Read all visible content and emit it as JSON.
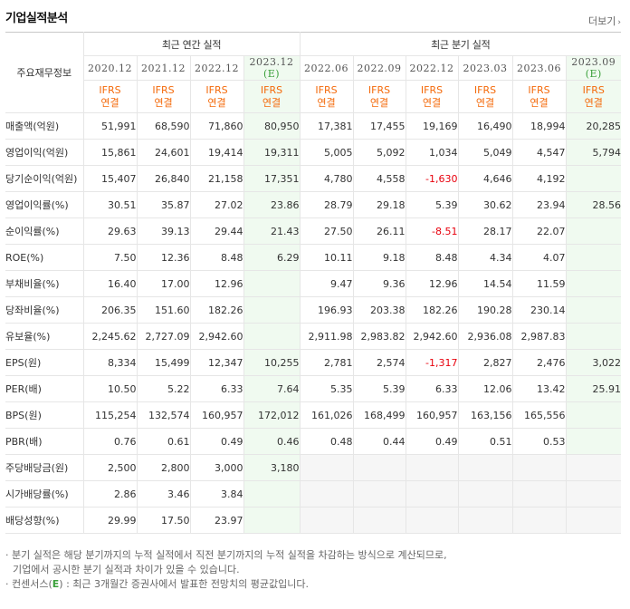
{
  "title": "기업실적분석",
  "more_label": "더보기",
  "more_arrow": "›",
  "table": {
    "item_header": "주요재무정보",
    "group_annual": "최근 연간 실적",
    "group_quarter": "최근 분기 실적",
    "periods": [
      {
        "label": "2020.12",
        "est": ""
      },
      {
        "label": "2021.12",
        "est": ""
      },
      {
        "label": "2022.12",
        "est": ""
      },
      {
        "label": "2023.12",
        "est": "(E)"
      },
      {
        "label": "2022.06",
        "est": ""
      },
      {
        "label": "2022.09",
        "est": ""
      },
      {
        "label": "2022.12",
        "est": ""
      },
      {
        "label": "2023.03",
        "est": ""
      },
      {
        "label": "2023.06",
        "est": ""
      },
      {
        "label": "2023.09",
        "est": "(E)"
      }
    ],
    "ifrs_line1": "IFRS",
    "ifrs_line2": "연결",
    "rows": [
      {
        "label": "매출액(억원)",
        "values": [
          "51,991",
          "68,590",
          "71,860",
          "80,950",
          "17,381",
          "17,455",
          "19,169",
          "16,490",
          "18,994",
          "20,285"
        ]
      },
      {
        "label": "영업이익(억원)",
        "values": [
          "15,861",
          "24,601",
          "19,414",
          "19,311",
          "5,005",
          "5,092",
          "1,034",
          "5,049",
          "4,547",
          "5,794"
        ]
      },
      {
        "label": "당기순이익(억원)",
        "values": [
          "15,407",
          "26,840",
          "21,158",
          "17,351",
          "4,780",
          "4,558",
          "-1,630",
          "4,646",
          "4,192",
          ""
        ]
      },
      {
        "label": "영업이익률(%)",
        "values": [
          "30.51",
          "35.87",
          "27.02",
          "23.86",
          "28.79",
          "29.18",
          "5.39",
          "30.62",
          "23.94",
          "28.56"
        ]
      },
      {
        "label": "순이익률(%)",
        "values": [
          "29.63",
          "39.13",
          "29.44",
          "21.43",
          "27.50",
          "26.11",
          "-8.51",
          "28.17",
          "22.07",
          ""
        ]
      },
      {
        "label": "ROE(%)",
        "values": [
          "7.50",
          "12.36",
          "8.48",
          "6.29",
          "10.11",
          "9.18",
          "8.48",
          "4.34",
          "4.07",
          ""
        ]
      },
      {
        "label": "부채비율(%)",
        "values": [
          "16.40",
          "17.00",
          "12.96",
          "",
          "9.47",
          "9.36",
          "12.96",
          "14.54",
          "11.59",
          ""
        ]
      },
      {
        "label": "당좌비율(%)",
        "values": [
          "206.35",
          "151.60",
          "182.26",
          "",
          "196.93",
          "203.38",
          "182.26",
          "190.28",
          "230.14",
          ""
        ]
      },
      {
        "label": "유보율(%)",
        "values": [
          "2,245.62",
          "2,727.09",
          "2,942.60",
          "",
          "2,911.98",
          "2,983.82",
          "2,942.60",
          "2,936.08",
          "2,987.83",
          ""
        ]
      },
      {
        "label": "EPS(원)",
        "values": [
          "8,334",
          "15,499",
          "12,347",
          "10,255",
          "2,781",
          "2,574",
          "-1,317",
          "2,827",
          "2,476",
          "3,022"
        ]
      },
      {
        "label": "PER(배)",
        "values": [
          "10.50",
          "5.22",
          "6.33",
          "7.64",
          "5.35",
          "5.39",
          "6.33",
          "12.06",
          "13.42",
          "25.91"
        ]
      },
      {
        "label": "BPS(원)",
        "values": [
          "115,254",
          "132,574",
          "160,957",
          "172,012",
          "161,026",
          "168,499",
          "160,957",
          "163,156",
          "165,556",
          ""
        ]
      },
      {
        "label": "PBR(배)",
        "values": [
          "0.76",
          "0.61",
          "0.49",
          "0.46",
          "0.48",
          "0.44",
          "0.49",
          "0.51",
          "0.53",
          ""
        ]
      },
      {
        "label": "주당배당금(원)",
        "values": [
          "2,500",
          "2,800",
          "3,000",
          "3,180",
          "",
          "",
          "",
          "",
          "",
          ""
        ]
      },
      {
        "label": "시가배당률(%)",
        "values": [
          "2.86",
          "3.46",
          "3.84",
          "",
          "",
          "",
          "",
          "",
          "",
          ""
        ]
      },
      {
        "label": "배당성향(%)",
        "values": [
          "29.99",
          "17.50",
          "23.97",
          "",
          "",
          "",
          "",
          "",
          "",
          ""
        ]
      }
    ]
  },
  "notes": {
    "note1_line1": "· 분기 실적은 해당 분기까지의 누적 실적에서 직전 분기까지의 누적 실적을 차감하는 방식으로 계산되므로,",
    "note1_line2": "기업에서 공시한 분기 실적과 차이가 있을 수 있습니다.",
    "note2_prefix": "· 컨센서스(",
    "note2_e": "E",
    "note2_suffix": ") : 최근 3개월간 증권사에서 발표한 전망치의 평균값입니다."
  }
}
